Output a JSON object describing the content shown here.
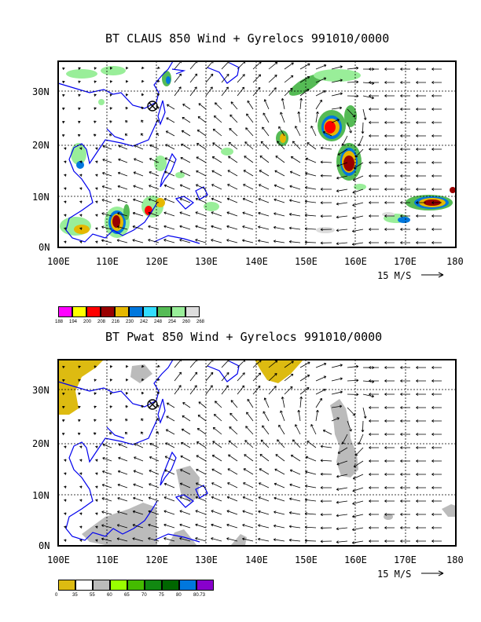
{
  "panels": [
    {
      "title": "BT CLAUS 850 Wind + Gyrelocs 991010/0000",
      "y_ticks": [
        "30N",
        "20N",
        "10N",
        "0N"
      ],
      "x_ticks": [
        "100E",
        "110E",
        "120E",
        "130E",
        "140E",
        "150E",
        "160E",
        "170E",
        "180"
      ],
      "scale_label": "15 M/S",
      "colorbar": {
        "colors": [
          "#ff00ff",
          "#ffff00",
          "#ff0000",
          "#990000",
          "#e6b800",
          "#0077dd",
          "#33ddff",
          "#55bb55",
          "#99ee99",
          "#dddddd"
        ],
        "labels": [
          "188",
          "194",
          "200",
          "208",
          "216",
          "230",
          "242",
          "248",
          "254",
          "260",
          "268"
        ]
      }
    },
    {
      "title": "BT Pwat 850 Wind + Gyrelocs 991010/0000",
      "y_ticks": [
        "30N",
        "20N",
        "10N",
        "0N"
      ],
      "x_ticks": [
        "100E",
        "110E",
        "120E",
        "130E",
        "140E",
        "150E",
        "160E",
        "170E",
        "180"
      ],
      "scale_label": "15 M/S",
      "colorbar": {
        "colors": [
          "#ddbb11",
          "#ffffff",
          "#bbbbbb",
          "#99ff00",
          "#44bb00",
          "#118811",
          "#006600",
          "#0077dd",
          "#8800cc"
        ],
        "labels": [
          "0",
          "35",
          "55",
          "60",
          "65",
          "70",
          "75",
          "80",
          "80.73"
        ]
      }
    }
  ],
  "map_style": {
    "coast_color": "#0000ee",
    "grid_color": "#000000",
    "marker": "circle-cross-icon"
  }
}
